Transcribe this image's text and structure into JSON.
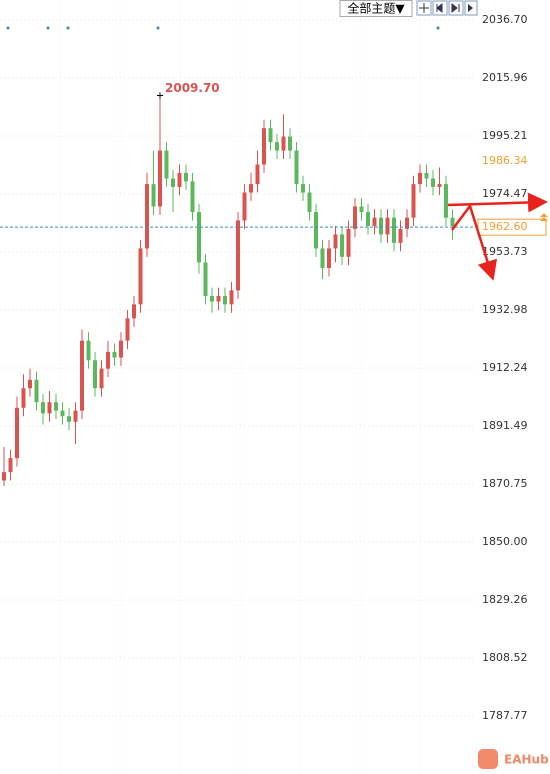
{
  "toolbar": {
    "theme_button": "全部主题▼"
  },
  "watermark": "EAHub",
  "chart_data": {
    "type": "candlestick",
    "up_color": "#d9534f",
    "down_color": "#5cb85c",
    "open": [
      1872,
      1875,
      1880,
      1898,
      1905,
      1908,
      1900,
      1896,
      1900,
      1897,
      1895,
      1893,
      1897,
      1922,
      1915,
      1905,
      1912,
      1918,
      1916,
      1922,
      1930,
      1935,
      1955,
      1978,
      1970,
      1990,
      1980,
      1977,
      1982,
      1979,
      1968,
      1950,
      1938,
      1936,
      1938,
      1935,
      1940,
      1965,
      1975,
      1978,
      1985,
      1998,
      1993,
      1990,
      1995,
      1990,
      1978,
      1975,
      1968,
      1955,
      1948,
      1955,
      1960,
      1952,
      1962,
      1970,
      1968,
      1963,
      1966,
      1960,
      1966,
      1957,
      1962,
      1966,
      1978,
      1982,
      1980,
      1977,
      1978,
      1966
    ],
    "high": [
      1884,
      1883,
      1902,
      1910,
      1912,
      1911,
      1903,
      1904,
      1903,
      1900,
      1898,
      1900,
      1926,
      1925,
      1918,
      1915,
      1922,
      1921,
      1925,
      1933,
      1938,
      1958,
      1982,
      1990,
      2009.7,
      1993,
      1983,
      1985,
      1985,
      1982,
      1971,
      1953,
      1941,
      1941,
      1941,
      1943,
      1968,
      1978,
      1982,
      1990,
      2001,
      2001,
      1996,
      2003,
      1998,
      1993,
      1981,
      1978,
      1971,
      1958,
      1958,
      1963,
      1963,
      1965,
      1973,
      1973,
      1971,
      1969,
      1969,
      1969,
      1969,
      1965,
      1969,
      1981,
      1985,
      1985,
      1983,
      1984,
      1981,
      1969
    ],
    "low": [
      1870,
      1872,
      1877,
      1895,
      1902,
      1897,
      1892,
      1893,
      1894,
      1892,
      1890,
      1885,
      1894,
      1912,
      1902,
      1902,
      1909,
      1913,
      1913,
      1919,
      1927,
      1932,
      1952,
      1967,
      1967,
      1977,
      1968,
      1974,
      1976,
      1965,
      1946,
      1935,
      1932,
      1933,
      1932,
      1932,
      1937,
      1962,
      1972,
      1975,
      1982,
      1990,
      1987,
      1987,
      1987,
      1975,
      1972,
      1965,
      1952,
      1944,
      1945,
      1950,
      1949,
      1949,
      1959,
      1965,
      1960,
      1960,
      1957,
      1957,
      1954,
      1954,
      1959,
      1963,
      1975,
      1977,
      1974,
      1974,
      1963,
      1958
    ],
    "close": [
      1875,
      1880,
      1898,
      1905,
      1908,
      1900,
      1896,
      1900,
      1897,
      1895,
      1893,
      1897,
      1922,
      1915,
      1905,
      1912,
      1918,
      1916,
      1922,
      1930,
      1935,
      1955,
      1978,
      1970,
      1990,
      1980,
      1977,
      1982,
      1979,
      1968,
      1950,
      1938,
      1936,
      1938,
      1935,
      1940,
      1965,
      1975,
      1978,
      1985,
      1998,
      1993,
      1990,
      1995,
      1990,
      1978,
      1975,
      1968,
      1955,
      1948,
      1955,
      1960,
      1952,
      1962,
      1970,
      1968,
      1963,
      1966,
      1960,
      1966,
      1957,
      1962,
      1966,
      1978,
      1982,
      1980,
      1977,
      1978,
      1966,
      1963
    ],
    "ylim": [
      1767.03,
      2043.85
    ],
    "yticks": [
      {
        "value": 2036.7,
        "label": "2036.70"
      },
      2015.96,
      1995.21,
      1974.47,
      1953.73,
      1932.98,
      1912.24,
      1891.49,
      1870.75,
      {
        "value": 1850,
        "label": "1850.00"
      },
      1829.26,
      1808.52,
      1787.77
    ],
    "grid": true,
    "annotations": [
      {
        "text": "2009.70",
        "value": 2009.7,
        "color": "#d9534f"
      }
    ],
    "price_lines": [
      {
        "label": "1986.34",
        "value": 1986.34,
        "color": "#f0a030",
        "boxed": false
      },
      {
        "label": "1962.60",
        "value": 1962.6,
        "color": "#f0a030",
        "boxed": true,
        "line_color": "#3a8fc4"
      }
    ]
  }
}
